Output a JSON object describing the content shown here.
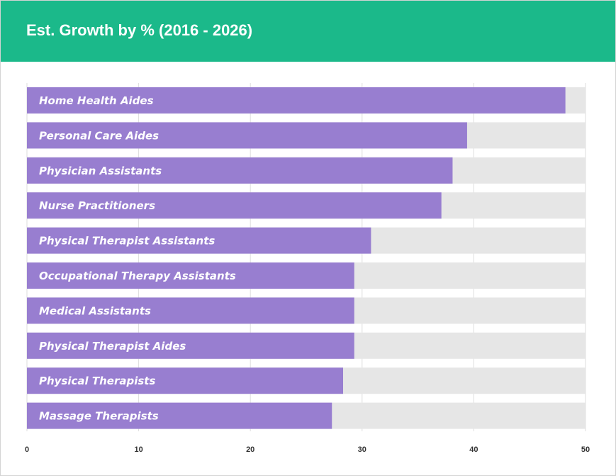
{
  "header": {
    "title": "Est. Growth by % (2016 - 2026)"
  },
  "colors": {
    "header_background": "#1bb98a",
    "bar_fill": "#987ed0",
    "bar_track": "#e6e6e6",
    "bar_label": "#ffffff",
    "gridline": "#dedede"
  },
  "chart_data": {
    "type": "bar",
    "orientation": "horizontal",
    "title": "Est. Growth by % (2016 - 2026)",
    "xlabel": "",
    "ylabel": "",
    "xlim": [
      0,
      50
    ],
    "x_ticks": [
      0,
      10,
      20,
      30,
      40,
      50
    ],
    "grid": true,
    "categories": [
      "Home Health Aides",
      "Personal Care Aides",
      "Physician Assistants",
      "Nurse Practitioners",
      "Physical Therapist Assistants",
      "Occupational Therapy Assistants",
      "Medical Assistants",
      "Physical Therapist Aides",
      "Physical Therapists",
      "Massage Therapists"
    ],
    "values": [
      48.2,
      39.4,
      38.1,
      37.1,
      30.8,
      29.3,
      29.3,
      29.3,
      28.3,
      27.3
    ]
  }
}
